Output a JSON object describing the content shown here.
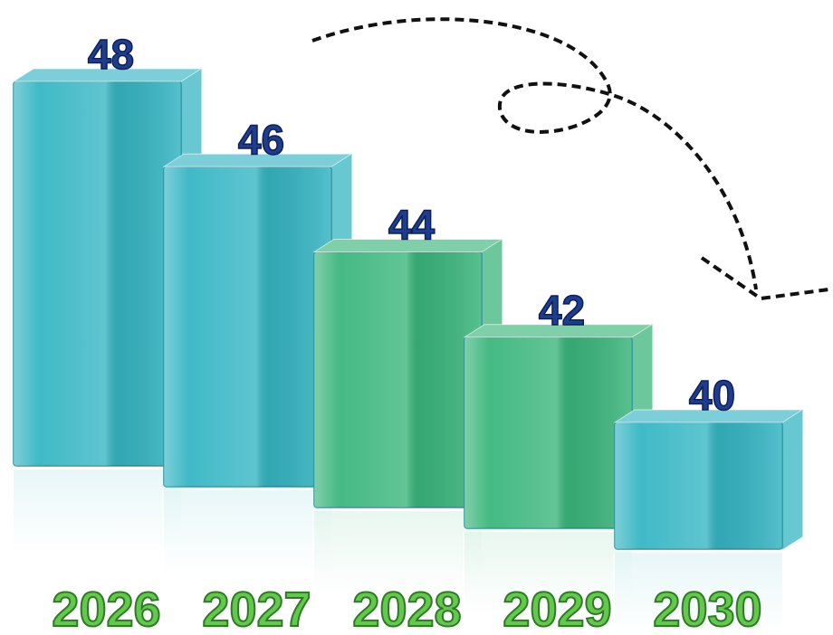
{
  "chart_data": {
    "type": "bar",
    "categories": [
      "2026",
      "2027",
      "2028",
      "2029",
      "2030"
    ],
    "values": [
      48,
      46,
      44,
      42,
      40
    ],
    "colors": [
      "#36b6c4",
      "#36b6c4",
      "#3bb67c",
      "#3bb67c",
      "#36b6c4"
    ]
  }
}
